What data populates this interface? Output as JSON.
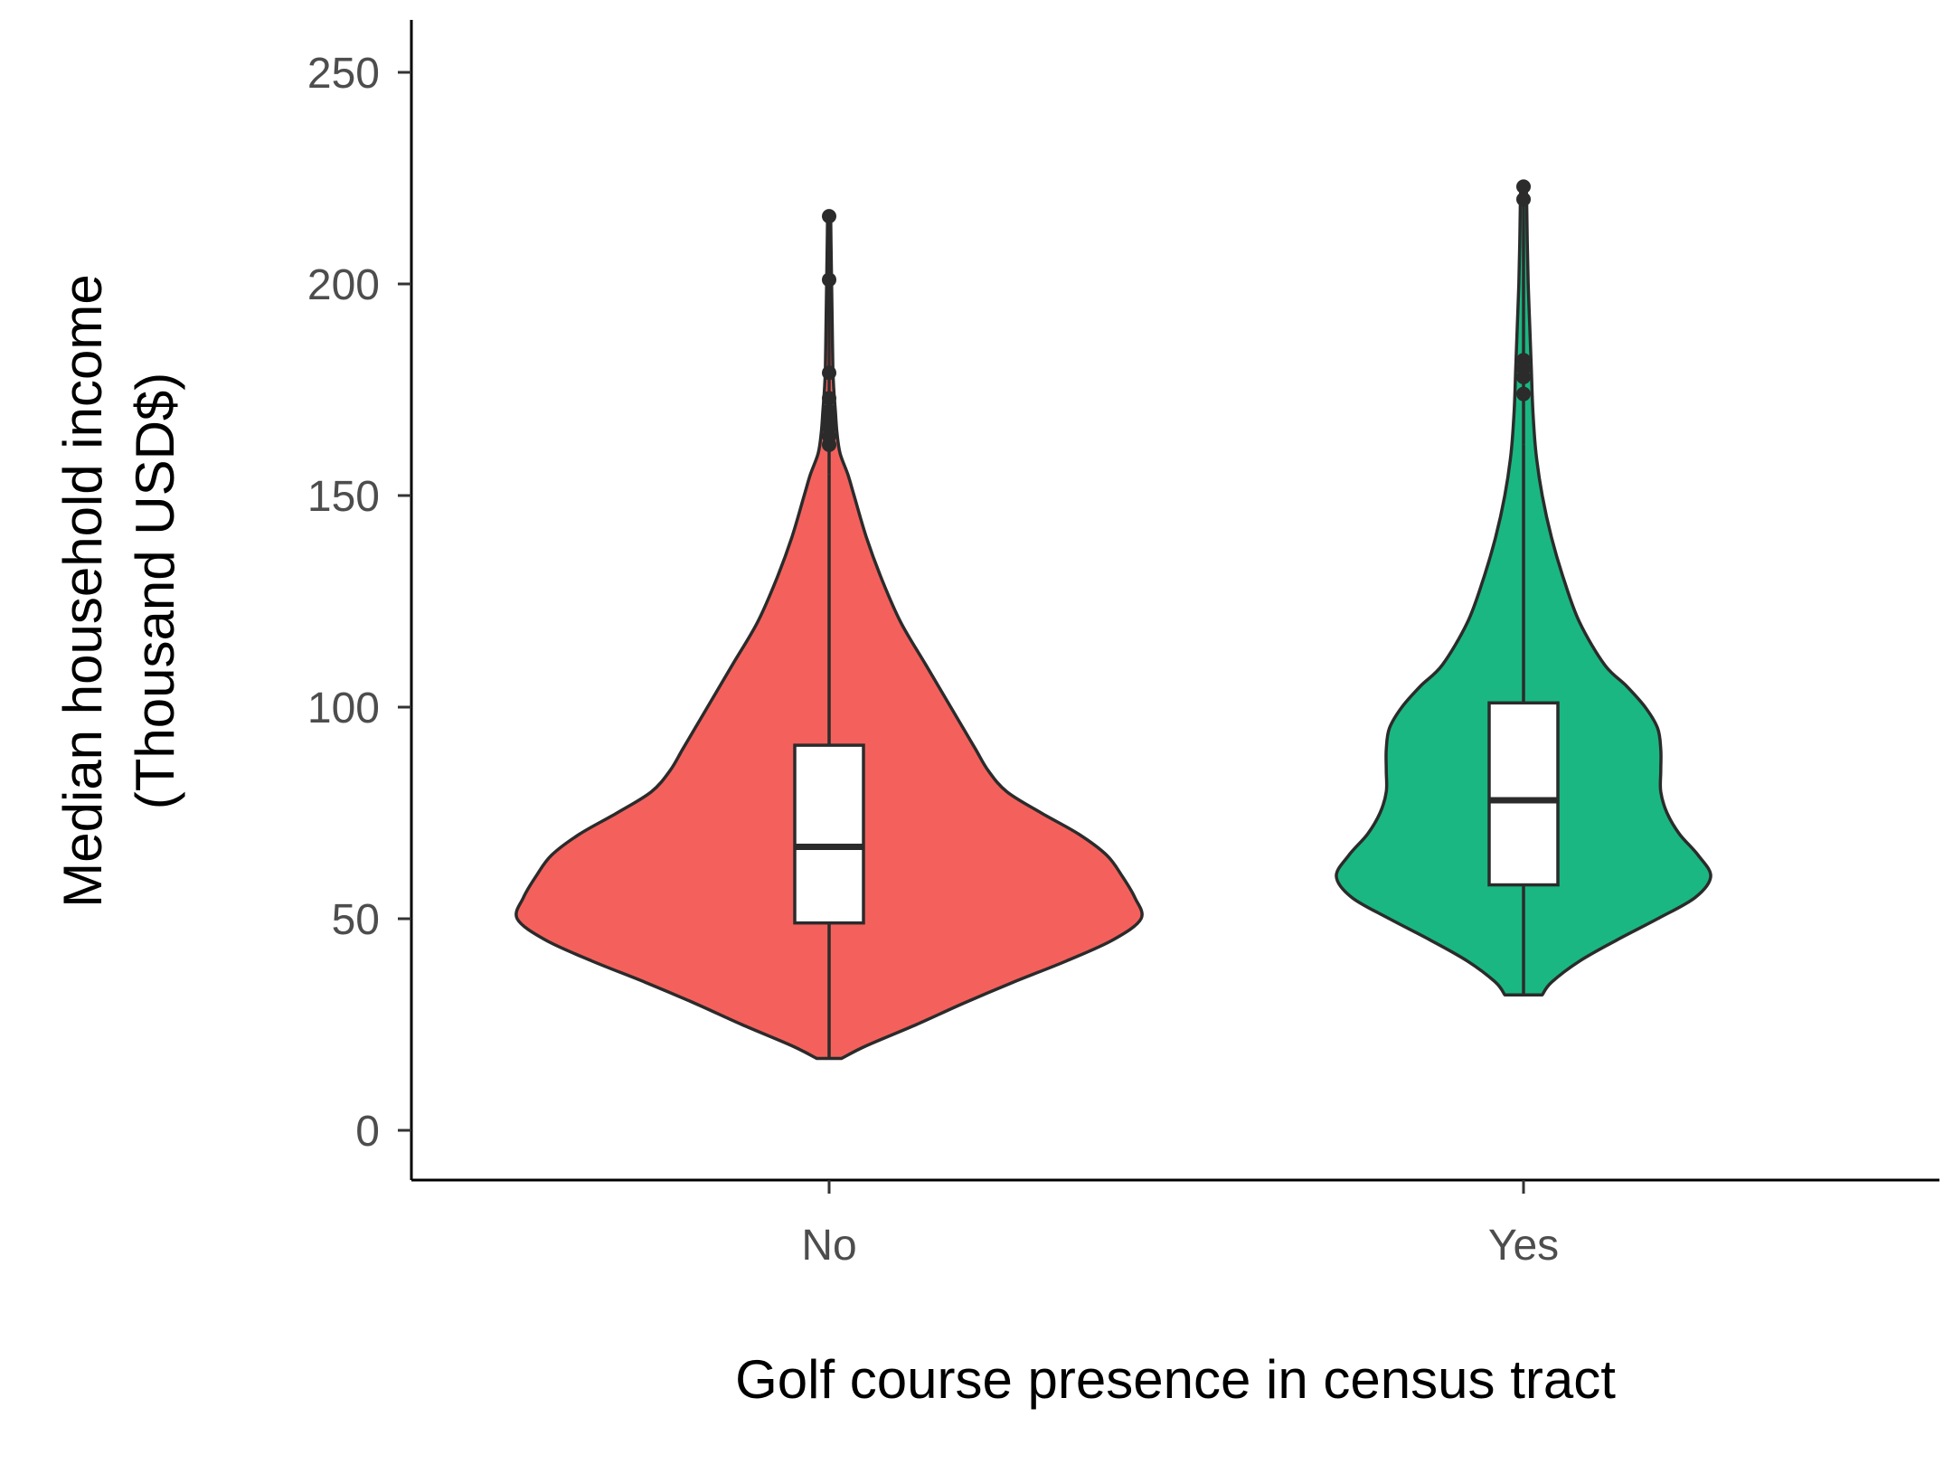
{
  "chart_data": {
    "type": "violin",
    "xlabel": "Golf course presence in census tract",
    "ylabel_lines": [
      "Median household income",
      "(Thousand USD$)"
    ],
    "categories": [
      "No",
      "Yes"
    ],
    "ylim": [
      -12,
      262
    ],
    "yticks": [
      0,
      50,
      100,
      150,
      200,
      250
    ],
    "ytick_labels": [
      "0",
      "50",
      "100",
      "150",
      "200",
      "250"
    ],
    "grid": false,
    "series": [
      {
        "category": "No",
        "color": "#F4615C",
        "min": 17,
        "max": 216,
        "box": {
          "q1": 49,
          "median": 67,
          "q3": 91,
          "whisker_low": 17,
          "whisker_high": 155
        },
        "outliers": [
          216,
          201,
          179,
          173,
          170,
          168,
          166,
          164,
          162
        ],
        "density": [
          [
            17,
            0.04
          ],
          [
            20,
            0.12
          ],
          [
            25,
            0.28
          ],
          [
            30,
            0.43
          ],
          [
            35,
            0.59
          ],
          [
            40,
            0.76
          ],
          [
            45,
            0.91
          ],
          [
            50,
            1.0
          ],
          [
            55,
            0.98
          ],
          [
            60,
            0.94
          ],
          [
            65,
            0.89
          ],
          [
            70,
            0.8
          ],
          [
            75,
            0.68
          ],
          [
            80,
            0.57
          ],
          [
            85,
            0.51
          ],
          [
            90,
            0.47
          ],
          [
            95,
            0.43
          ],
          [
            100,
            0.39
          ],
          [
            110,
            0.31
          ],
          [
            120,
            0.23
          ],
          [
            130,
            0.17
          ],
          [
            140,
            0.12
          ],
          [
            150,
            0.08
          ],
          [
            155,
            0.06
          ],
          [
            160,
            0.035
          ],
          [
            165,
            0.025
          ],
          [
            170,
            0.02
          ],
          [
            175,
            0.015
          ],
          [
            180,
            0.012
          ],
          [
            190,
            0.01
          ],
          [
            200,
            0.008
          ],
          [
            210,
            0.006
          ],
          [
            216,
            0.005
          ]
        ]
      },
      {
        "category": "Yes",
        "color": "#1AB783",
        "min": 32,
        "max": 223,
        "box": {
          "q1": 58,
          "median": 78,
          "q3": 101,
          "whisker_low": 32,
          "whisker_high": 162
        },
        "outliers": [
          223,
          220,
          182,
          180,
          178,
          174
        ],
        "density": [
          [
            32,
            0.06
          ],
          [
            35,
            0.09
          ],
          [
            40,
            0.18
          ],
          [
            45,
            0.3
          ],
          [
            50,
            0.43
          ],
          [
            55,
            0.55
          ],
          [
            60,
            0.6
          ],
          [
            65,
            0.56
          ],
          [
            70,
            0.5
          ],
          [
            75,
            0.46
          ],
          [
            80,
            0.44
          ],
          [
            85,
            0.44
          ],
          [
            90,
            0.44
          ],
          [
            95,
            0.43
          ],
          [
            100,
            0.39
          ],
          [
            105,
            0.33
          ],
          [
            110,
            0.26
          ],
          [
            120,
            0.18
          ],
          [
            130,
            0.13
          ],
          [
            140,
            0.09
          ],
          [
            150,
            0.06
          ],
          [
            160,
            0.04
          ],
          [
            170,
            0.03
          ],
          [
            180,
            0.025
          ],
          [
            190,
            0.02
          ],
          [
            200,
            0.015
          ],
          [
            210,
            0.012
          ],
          [
            220,
            0.01
          ],
          [
            223,
            0.008
          ]
        ]
      }
    ]
  }
}
